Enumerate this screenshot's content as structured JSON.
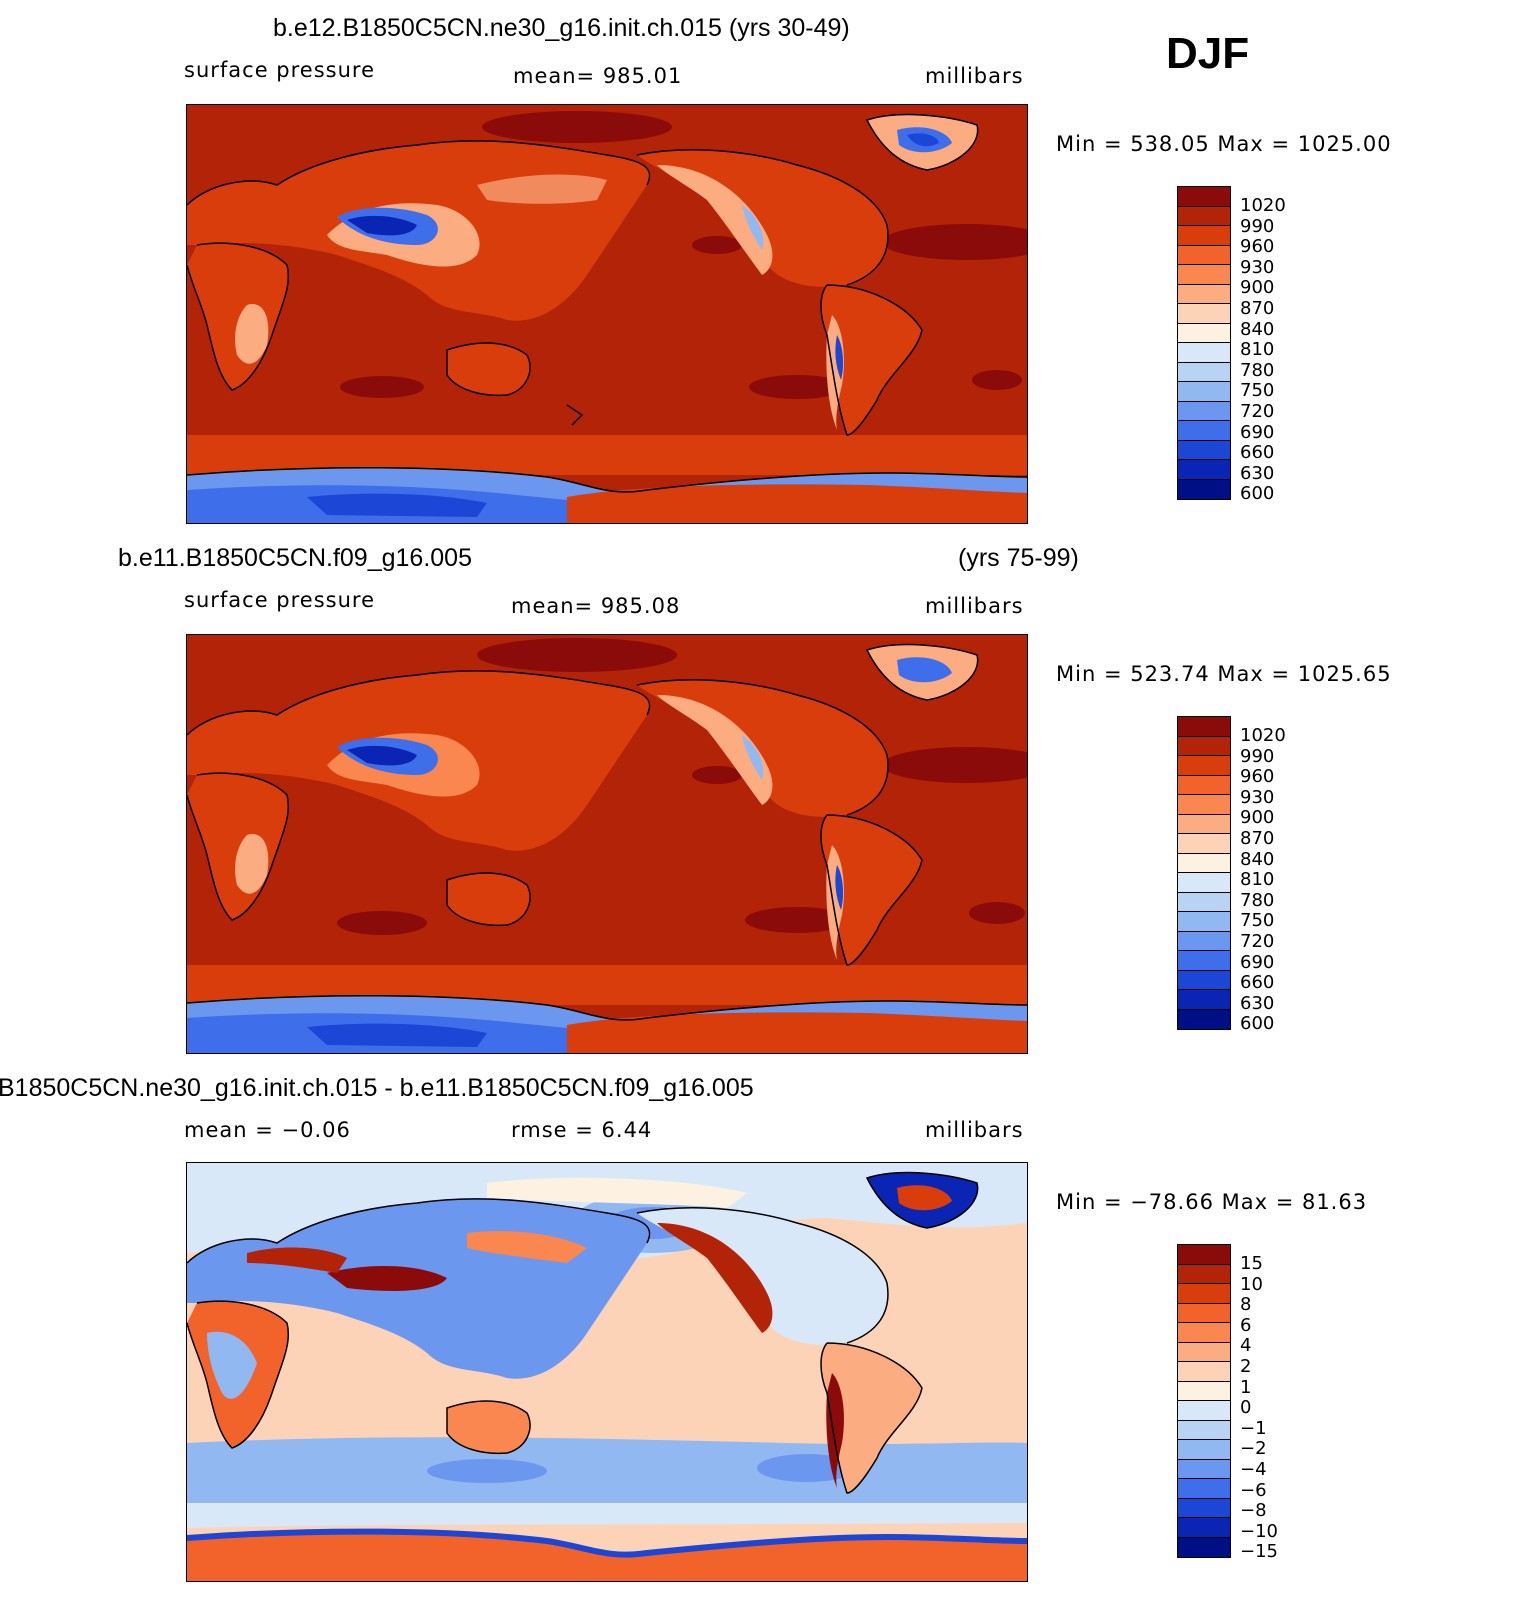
{
  "season_label": "DJF",
  "panels": [
    {
      "title_left": "b.e12.B1850C5CN.ne30_g16.init.ch.015 (yrs 30-49)",
      "title_right": "",
      "variable": "surface pressure",
      "stat": "mean=  985.01",
      "units": "millibars",
      "minmax": "Min  =  538.05  Max  =  1025.00",
      "palette": [
        "#8b0a0a",
        "#b22308",
        "#d93d0c",
        "#f2622b",
        "#f9874f",
        "#fbac81",
        "#fdd3b7",
        "#fdf2e2",
        "#d9e8f8",
        "#b9d3f5",
        "#92b8f2",
        "#6b97ef",
        "#3f6eea",
        "#1b46d6",
        "#0a25b4",
        "#000f86"
      ],
      "levels": [
        "1020",
        "990",
        "960",
        "930",
        "900",
        "870",
        "840",
        "810",
        "780",
        "750",
        "720",
        "690",
        "660",
        "630",
        "600"
      ]
    },
    {
      "title_left": "b.e11.B1850C5CN.f09_g16.005",
      "title_right": "(yrs 75-99)",
      "variable": "surface pressure",
      "stat": "mean=  985.08",
      "units": "millibars",
      "minmax": "Min  =  523.74  Max  =  1025.65",
      "palette": [
        "#8b0a0a",
        "#b22308",
        "#d93d0c",
        "#f2622b",
        "#f9874f",
        "#fbac81",
        "#fdd3b7",
        "#fdf2e2",
        "#d9e8f8",
        "#b9d3f5",
        "#92b8f2",
        "#6b97ef",
        "#3f6eea",
        "#1b46d6",
        "#0a25b4",
        "#000f86"
      ],
      "levels": [
        "1020",
        "990",
        "960",
        "930",
        "900",
        "870",
        "840",
        "810",
        "780",
        "750",
        "720",
        "690",
        "660",
        "630",
        "600"
      ]
    },
    {
      "title_left": "B1850C5CN.ne30_g16.init.ch.015 - b.e11.B1850C5CN.f09_g16.005",
      "title_right": "",
      "variable": "mean  =    −0.06",
      "stat": "rmse  =      6.44",
      "units": "millibars",
      "minmax": "Min  =  −78.66  Max  =    81.63",
      "palette": [
        "#8b0a0a",
        "#b22308",
        "#d93d0c",
        "#f2622b",
        "#f9874f",
        "#fbac81",
        "#fdd3b7",
        "#fdf2e2",
        "#d9e8f8",
        "#b9d3f5",
        "#92b8f2",
        "#6b97ef",
        "#3f6eea",
        "#1b46d6",
        "#0a25b4",
        "#000f86"
      ],
      "levels": [
        "15",
        "10",
        "8",
        "6",
        "4",
        "2",
        "1",
        "0",
        "−1",
        "−2",
        "−4",
        "−6",
        "−8",
        "−10",
        "−15"
      ]
    }
  ]
}
